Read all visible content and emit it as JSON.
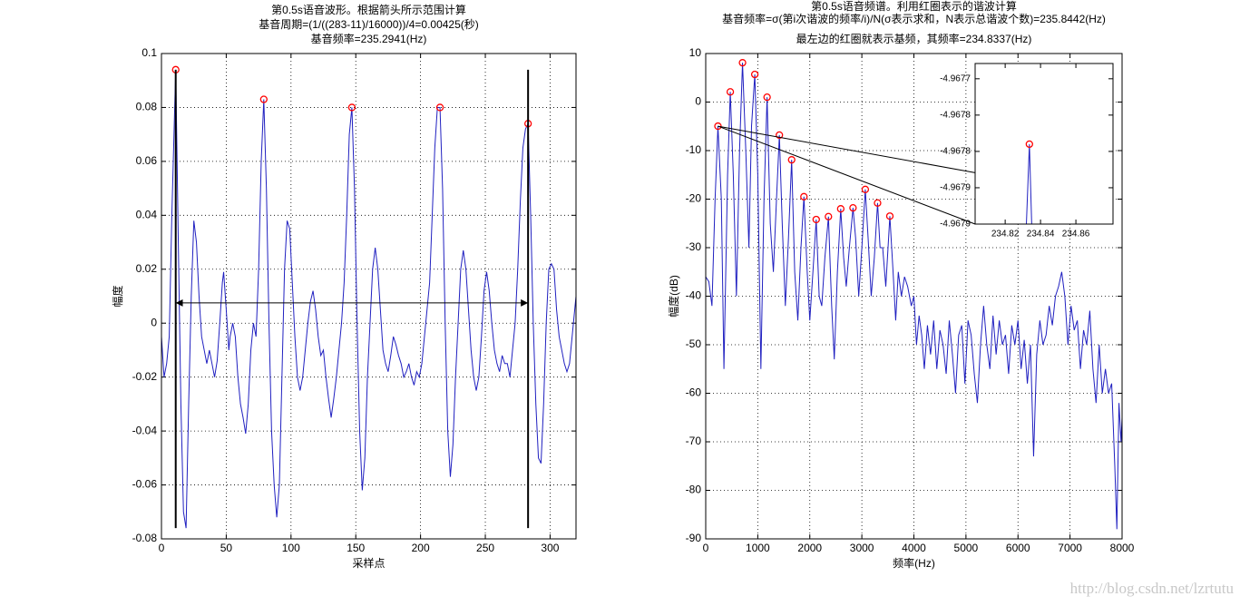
{
  "chart_data": [
    {
      "type": "line",
      "title": [
        "第0.5s语音波形。根据箭头所示范围计算",
        "基音周期=(1/((283-11)/16000))/4=0.00425(秒)",
        "基音频率=235.2941(Hz)"
      ],
      "xlabel": "采样点",
      "ylabel": "幅度",
      "x": [
        0,
        2,
        4,
        6,
        8,
        11,
        13,
        15,
        17,
        19,
        21,
        23,
        25,
        27,
        29,
        31,
        33,
        35,
        37,
        39,
        41,
        43,
        45,
        47,
        48,
        50,
        52,
        53,
        55,
        57,
        59,
        61,
        63,
        65,
        67,
        69,
        71,
        73,
        75,
        77,
        79,
        81,
        83,
        85,
        87,
        89,
        91,
        93,
        95,
        97,
        99,
        101,
        103,
        105,
        107,
        109,
        111,
        113,
        115,
        117,
        119,
        121,
        123,
        125,
        127,
        129,
        131,
        133,
        135,
        137,
        139,
        141,
        143,
        145,
        147,
        149,
        151,
        153,
        155,
        157,
        159,
        161,
        163,
        165,
        167,
        169,
        171,
        173,
        175,
        177,
        179,
        181,
        183,
        185,
        187,
        189,
        191,
        193,
        195,
        197,
        199,
        201,
        203,
        205,
        207,
        209,
        211,
        213,
        215,
        217,
        219,
        221,
        223,
        225,
        227,
        229,
        231,
        233,
        235,
        237,
        239,
        241,
        243,
        245,
        247,
        249,
        251,
        253,
        255,
        257,
        259,
        261,
        263,
        265,
        267,
        269,
        271,
        273,
        275,
        277,
        279,
        281,
        283,
        285,
        287,
        289,
        291,
        293,
        295,
        297,
        299,
        301,
        303,
        305,
        307,
        309,
        311,
        313,
        315,
        317,
        319,
        320
      ],
      "values": [
        -0.005,
        -0.02,
        -0.015,
        -0.005,
        0.04,
        0.094,
        0.03,
        -0.03,
        -0.07,
        -0.076,
        -0.03,
        0.01,
        0.038,
        0.03,
        0.01,
        -0.005,
        -0.01,
        -0.015,
        -0.01,
        -0.015,
        -0.02,
        -0.014,
        0,
        0.015,
        0.019,
        0.005,
        -0.01,
        -0.005,
        0,
        -0.005,
        -0.02,
        -0.03,
        -0.035,
        -0.041,
        -0.03,
        -0.01,
        0,
        -0.005,
        0.02,
        0.06,
        0.083,
        0.05,
        0,
        -0.04,
        -0.06,
        -0.072,
        -0.06,
        -0.02,
        0.02,
        0.038,
        0.035,
        0.015,
        -0.005,
        -0.02,
        -0.025,
        -0.02,
        -0.01,
        0,
        0.008,
        0.012,
        0.005,
        -0.005,
        -0.012,
        -0.01,
        -0.02,
        -0.028,
        -0.035,
        -0.028,
        -0.02,
        -0.01,
        0,
        0.015,
        0.04,
        0.07,
        0.08,
        0.05,
        0,
        -0.04,
        -0.062,
        -0.05,
        -0.02,
        0,
        0.02,
        0.028,
        0.02,
        0.005,
        -0.01,
        -0.015,
        -0.018,
        -0.012,
        -0.005,
        -0.008,
        -0.012,
        -0.015,
        -0.02,
        -0.018,
        -0.015,
        -0.02,
        -0.023,
        -0.018,
        -0.02,
        -0.015,
        -0.005,
        0.005,
        0.015,
        0.04,
        0.065,
        0.08,
        0.08,
        0.05,
        0,
        -0.04,
        -0.057,
        -0.045,
        -0.02,
        0,
        0.02,
        0.027,
        0.02,
        0.005,
        -0.01,
        -0.02,
        -0.025,
        -0.02,
        -0.005,
        0.012,
        0.019,
        0.012,
        0,
        -0.01,
        -0.015,
        -0.018,
        -0.012,
        -0.015,
        -0.015,
        -0.02,
        -0.01,
        0,
        0.02,
        0.045,
        0.065,
        0.072,
        0.074,
        0.04,
        0,
        -0.03,
        -0.05,
        -0.052,
        -0.03,
        0,
        0.02,
        0.022,
        0.02,
        0.005,
        -0.005,
        -0.01,
        -0.015,
        -0.018,
        -0.015,
        -0.005,
        0.005,
        0.01
      ],
      "color": "#2020c0",
      "peaks": {
        "x": [
          11,
          79,
          147,
          215,
          283
        ],
        "values": [
          0.094,
          0.083,
          0.08,
          0.08,
          0.074
        ],
        "color": "#ff0000"
      },
      "vlines": {
        "x": [
          11,
          283
        ],
        "ymin": -0.076,
        "ymax": 0.094
      },
      "arrow": {
        "x": [
          11,
          283
        ],
        "y": 0.0075
      },
      "xlim": [
        0,
        320
      ],
      "ylim": [
        -0.08,
        0.1
      ],
      "xticks": [
        0,
        50,
        100,
        150,
        200,
        250,
        300
      ],
      "yticks": [
        -0.08,
        -0.06,
        -0.04,
        -0.02,
        0,
        0.02,
        0.04,
        0.06,
        0.08,
        0.1
      ],
      "grid": true
    },
    {
      "type": "line",
      "title": [
        "第0.5s语音频谱。利用红圈表示的谐波计算",
        "基音频率=σ(第i次谐波的频率/i)/N(σ表示求和，N表示总谐波个数)=235.8442(Hz)",
        "最左边的红圈就表示基频，其频率=234.8337(Hz)"
      ],
      "xlabel": "频率(Hz)",
      "ylabel": "幅度(dB)",
      "x": [
        0,
        60,
        120,
        180,
        234.8337,
        300,
        350,
        420,
        472,
        530,
        590,
        650,
        707,
        770,
        830,
        880,
        943,
        1000,
        1060,
        1120,
        1179,
        1240,
        1300,
        1360,
        1415,
        1470,
        1530,
        1590,
        1651,
        1710,
        1770,
        1830,
        1887,
        1950,
        2000,
        2060,
        2123,
        2180,
        2230,
        2290,
        2358,
        2420,
        2470,
        2530,
        2594,
        2650,
        2700,
        2760,
        2830,
        2880,
        2940,
        3000,
        3066,
        3120,
        3180,
        3240,
        3302,
        3350,
        3400,
        3460,
        3538,
        3600,
        3650,
        3700,
        3760,
        3820,
        3880,
        3950,
        4000,
        4050,
        4100,
        4150,
        4200,
        4260,
        4320,
        4380,
        4440,
        4500,
        4560,
        4620,
        4680,
        4740,
        4800,
        4860,
        4920,
        4980,
        5040,
        5100,
        5160,
        5220,
        5280,
        5340,
        5400,
        5460,
        5520,
        5580,
        5640,
        5700,
        5760,
        5820,
        5880,
        5940,
        6000,
        6060,
        6120,
        6180,
        6240,
        6300,
        6360,
        6420,
        6480,
        6540,
        6600,
        6660,
        6720,
        6780,
        6840,
        6900,
        6960,
        7020,
        7080,
        7140,
        7200,
        7260,
        7320,
        7380,
        7440,
        7500,
        7560,
        7620,
        7680,
        7740,
        7800,
        7860,
        7900,
        7940,
        7980,
        8000
      ],
      "values": [
        -36,
        -37,
        -42,
        -20,
        -4.9678,
        -20,
        -55,
        -15,
        2.1,
        -15,
        -40,
        -10,
        8.1,
        -10,
        -30,
        -5,
        5.7,
        -15,
        -55,
        -20,
        1,
        -25,
        -35,
        -20,
        -6.8,
        -25,
        -42,
        -28,
        -11.9,
        -35,
        -45,
        -30,
        -19.5,
        -35,
        -45,
        -35,
        -24.2,
        -40,
        -42,
        -32,
        -23.6,
        -42,
        -53,
        -35,
        -22,
        -32,
        -38,
        -30,
        -21.8,
        -28,
        -40,
        -30,
        -18,
        -28,
        -40,
        -32,
        -20.8,
        -30,
        -30,
        -38,
        -23.5,
        -35,
        -45,
        -35,
        -40,
        -36,
        -38,
        -42,
        -40,
        -50,
        -44,
        -48,
        -55,
        -46,
        -52,
        -45,
        -55,
        -47,
        -50,
        -56,
        -45,
        -52,
        -60,
        -48,
        -46,
        -58,
        -45,
        -48,
        -56,
        -62,
        -50,
        -42,
        -50,
        -55,
        -44,
        -52,
        -45,
        -50,
        -48,
        -56,
        -46,
        -50,
        -45,
        -55,
        -49,
        -58,
        -50,
        -73,
        -52,
        -45,
        -50,
        -48,
        -42,
        -46,
        -40,
        -38,
        -35,
        -40,
        -50,
        -42,
        -47,
        -45,
        -55,
        -47,
        -50,
        -43,
        -55,
        -62,
        -50,
        -60,
        -55,
        -60,
        -58,
        -75,
        -88,
        -62,
        -70,
        -65
      ],
      "color": "#2020c0",
      "peaks": {
        "x": [
          234.8337,
          472,
          707,
          943,
          1179,
          1415,
          1651,
          1887,
          2123,
          2358,
          2594,
          2830,
          3066,
          3302,
          3538
        ],
        "values": [
          -4.9678,
          2.1,
          8.1,
          5.7,
          1,
          -6.8,
          -11.9,
          -19.5,
          -24.2,
          -23.6,
          -22,
          -21.8,
          -18,
          -20.8,
          -23.5
        ],
        "color": "#ff0000"
      },
      "xlim": [
        0,
        8000
      ],
      "ylim": [
        -90,
        10
      ],
      "xticks": [
        0,
        1000,
        2000,
        3000,
        4000,
        5000,
        6000,
        7000,
        8000
      ],
      "yticks": [
        -90,
        -80,
        -70,
        -60,
        -50,
        -40,
        -30,
        -20,
        -10,
        0,
        10
      ],
      "grid": true,
      "inset": {
        "type": "line",
        "x": [
          234.803,
          234.832,
          234.8337,
          234.835,
          234.881
        ],
        "values": [
          -4.9679,
          -4.9679,
          -4.96779,
          -4.9679,
          -4.9679
        ],
        "color": "#2020c0",
        "peaks": {
          "x": [
            234.8337
          ],
          "values": [
            -4.96779
          ],
          "color": "#ff0000"
        },
        "xlim": [
          234.803,
          234.881
        ],
        "ylim": [
          -4.9679,
          -4.967679
        ],
        "xticks": [
          234.82,
          234.84,
          234.86
        ],
        "yticks": [
          -4.9677,
          {
            "value": -4.96775,
            "label": "-4.9678"
          },
          -4.9678,
          {
            "value": -4.96785,
            "label": "-4.9679"
          },
          -4.9679
        ],
        "grid": false
      }
    }
  ],
  "watermark": "http://blog.csdn.net/lzrtutu"
}
